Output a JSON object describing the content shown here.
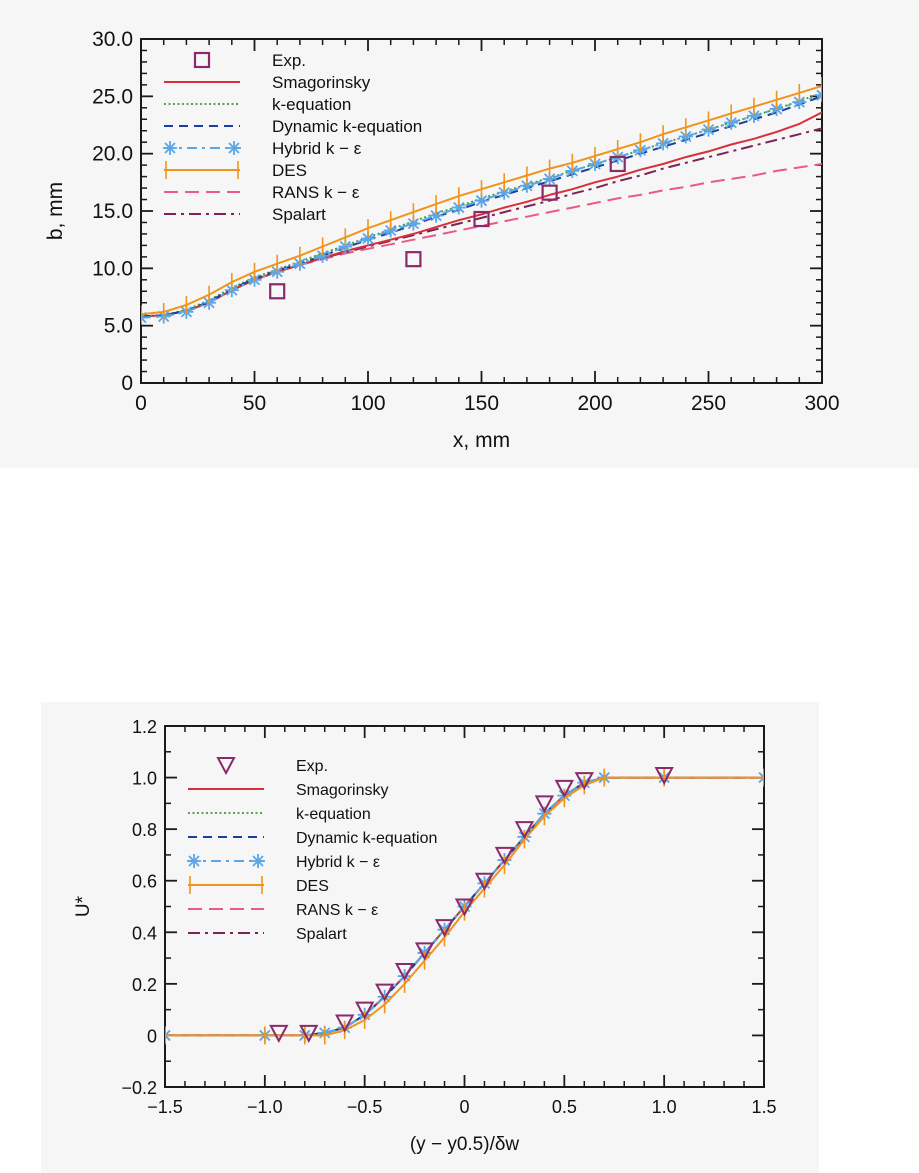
{
  "colors": {
    "exp": "#8b2a6a",
    "smagorinsky": "#d8303a",
    "k_equation": "#3f9a35",
    "dynamic": "#1b3f9e",
    "hybrid": "#5aa6e6",
    "des": "#f0941c",
    "rans": "#ea5a87",
    "spalart": "#7d2457"
  },
  "chart_data": [
    {
      "type": "line",
      "xlabel": "x, mm",
      "ylabel": "b, mm",
      "xlim": [
        0,
        300
      ],
      "ylim": [
        0,
        30
      ],
      "xticks": [
        0,
        50,
        100,
        150,
        200,
        250,
        300
      ],
      "xtick_labels": [
        "0",
        "50",
        "100",
        "150",
        "200",
        "250",
        "300"
      ],
      "yticks": [
        0,
        5,
        10,
        15,
        20,
        25,
        30
      ],
      "ytick_labels": [
        "0",
        "5.0",
        "10.0",
        "15.0",
        "20.0",
        "25.0",
        "30.0"
      ],
      "grid": false,
      "legend_position": "top-left",
      "legend": [
        "Exp.",
        "Smagorinsky",
        "k-equation",
        "Dynamic k-equation",
        "Hybrid k − ε",
        "DES",
        "RANS k − ε",
        "Spalart"
      ],
      "series": [
        {
          "name": "Exp.",
          "style": "markers",
          "marker": "square",
          "color_key": "exp",
          "x": [
            60,
            120,
            150,
            180,
            210
          ],
          "y": [
            8.0,
            10.8,
            14.3,
            16.6,
            19.1
          ]
        },
        {
          "name": "Smagorinsky",
          "style": "solid",
          "color_key": "smagorinsky",
          "x": [
            0,
            10,
            20,
            30,
            40,
            50,
            60,
            70,
            80,
            90,
            100,
            110,
            120,
            130,
            140,
            150,
            160,
            170,
            180,
            190,
            200,
            210,
            220,
            230,
            240,
            250,
            260,
            270,
            280,
            290,
            300
          ],
          "y": [
            5.8,
            5.9,
            6.3,
            7.0,
            8.1,
            9.0,
            9.7,
            10.3,
            10.9,
            11.5,
            12.0,
            12.5,
            13.0,
            13.6,
            14.2,
            14.7,
            15.3,
            15.8,
            16.4,
            16.9,
            17.5,
            18.0,
            18.6,
            19.1,
            19.7,
            20.2,
            20.8,
            21.3,
            21.9,
            22.6,
            23.6
          ]
        },
        {
          "name": "k-equation",
          "style": "dotted",
          "color_key": "k_equation",
          "x": [
            0,
            10,
            20,
            30,
            40,
            50,
            60,
            70,
            80,
            90,
            100,
            110,
            120,
            130,
            140,
            150,
            160,
            170,
            180,
            190,
            200,
            210,
            220,
            230,
            240,
            250,
            260,
            270,
            280,
            290,
            300
          ],
          "y": [
            5.8,
            5.9,
            6.4,
            7.2,
            8.3,
            9.2,
            9.9,
            10.6,
            11.3,
            12.0,
            12.7,
            13.4,
            14.1,
            14.8,
            15.4,
            16.1,
            16.7,
            17.3,
            17.9,
            18.5,
            19.1,
            19.7,
            20.3,
            20.9,
            21.5,
            22.1,
            22.7,
            23.3,
            23.9,
            24.6,
            25.3
          ]
        },
        {
          "name": "Dynamic k-equation",
          "style": "dashed",
          "color_key": "dynamic",
          "x": [
            0,
            10,
            20,
            30,
            40,
            50,
            60,
            70,
            80,
            90,
            100,
            110,
            120,
            130,
            140,
            150,
            160,
            170,
            180,
            190,
            200,
            210,
            220,
            230,
            240,
            250,
            260,
            270,
            280,
            290,
            300
          ],
          "y": [
            5.8,
            5.9,
            6.3,
            7.1,
            8.2,
            9.1,
            9.8,
            10.4,
            11.1,
            11.8,
            12.5,
            13.1,
            13.8,
            14.5,
            15.1,
            15.8,
            16.4,
            17.0,
            17.6,
            18.2,
            18.8,
            19.4,
            20.0,
            20.6,
            21.2,
            21.8,
            22.4,
            23.0,
            23.6,
            24.3,
            25.0
          ]
        },
        {
          "name": "Hybrid k − ε",
          "style": "dashdot-star",
          "color_key": "hybrid",
          "x": [
            0,
            10,
            20,
            30,
            40,
            50,
            60,
            70,
            80,
            90,
            100,
            110,
            120,
            130,
            140,
            150,
            160,
            170,
            180,
            190,
            200,
            210,
            220,
            230,
            240,
            250,
            260,
            270,
            280,
            290,
            300
          ],
          "y": [
            5.7,
            5.8,
            6.2,
            7.0,
            8.1,
            9.0,
            9.7,
            10.4,
            11.1,
            11.9,
            12.6,
            13.3,
            13.9,
            14.6,
            15.3,
            15.9,
            16.6,
            17.2,
            17.8,
            18.5,
            19.1,
            19.7,
            20.3,
            20.9,
            21.5,
            22.1,
            22.7,
            23.3,
            23.9,
            24.5,
            25.1
          ]
        },
        {
          "name": "DES",
          "style": "solid-tick",
          "color_key": "des",
          "x": [
            0,
            10,
            20,
            30,
            40,
            50,
            60,
            70,
            80,
            90,
            100,
            110,
            120,
            130,
            140,
            150,
            160,
            170,
            180,
            190,
            200,
            210,
            220,
            230,
            240,
            250,
            260,
            270,
            280,
            290,
            300
          ],
          "y": [
            6.0,
            6.2,
            6.8,
            7.7,
            8.8,
            9.7,
            10.4,
            11.1,
            11.9,
            12.7,
            13.5,
            14.2,
            14.9,
            15.6,
            16.3,
            16.9,
            17.5,
            18.1,
            18.7,
            19.2,
            19.8,
            20.4,
            21.0,
            21.7,
            22.3,
            22.9,
            23.5,
            24.1,
            24.7,
            25.3,
            25.9
          ]
        },
        {
          "name": "RANS k − ε",
          "style": "longdash",
          "color_key": "rans",
          "x": [
            0,
            10,
            20,
            30,
            40,
            50,
            60,
            70,
            80,
            90,
            100,
            110,
            120,
            130,
            140,
            150,
            160,
            170,
            180,
            190,
            200,
            210,
            220,
            230,
            240,
            250,
            260,
            270,
            280,
            290,
            300
          ],
          "y": [
            5.8,
            5.9,
            6.3,
            7.0,
            8.1,
            9.0,
            9.7,
            10.3,
            10.8,
            11.3,
            11.7,
            12.1,
            12.5,
            12.9,
            13.3,
            13.7,
            14.1,
            14.5,
            14.9,
            15.3,
            15.7,
            16.1,
            16.4,
            16.8,
            17.1,
            17.5,
            17.8,
            18.1,
            18.5,
            18.8,
            19.1
          ]
        },
        {
          "name": "Spalart",
          "style": "dashdot",
          "color_key": "spalart",
          "x": [
            0,
            10,
            20,
            30,
            40,
            50,
            60,
            70,
            80,
            90,
            100,
            110,
            120,
            130,
            140,
            150,
            160,
            170,
            180,
            190,
            200,
            210,
            220,
            230,
            240,
            250,
            260,
            270,
            280,
            290,
            300
          ],
          "y": [
            5.8,
            5.9,
            6.3,
            7.0,
            8.1,
            9.0,
            9.7,
            10.3,
            10.9,
            11.4,
            11.9,
            12.4,
            12.9,
            13.4,
            13.9,
            14.4,
            14.9,
            15.4,
            15.9,
            16.5,
            17.0,
            17.6,
            18.1,
            18.7,
            19.2,
            19.7,
            20.2,
            20.7,
            21.2,
            21.7,
            22.2
          ]
        }
      ]
    },
    {
      "type": "line",
      "xlabel": "(y − y0.5)/δw",
      "ylabel": "U*",
      "xlim": [
        -1.5,
        1.5
      ],
      "ylim": [
        -0.2,
        1.2
      ],
      "xticks": [
        -1.5,
        -1.0,
        -0.5,
        0,
        0.5,
        1.0,
        1.5
      ],
      "xtick_labels": [
        "−1.5",
        "−1.0",
        "−0.5",
        "0",
        "0.5",
        "1.0",
        "1.5"
      ],
      "yticks": [
        -0.2,
        0,
        0.2,
        0.4,
        0.6,
        0.8,
        1.0,
        1.2
      ],
      "ytick_labels": [
        "−0.2",
        "0",
        "0.2",
        "0.4",
        "0.6",
        "0.8",
        "1.0",
        "1.2"
      ],
      "grid": false,
      "legend_position": "top-left",
      "legend": [
        "Exp.",
        "Smagorinsky",
        "k-equation",
        "Dynamic k-equation",
        "Hybrid k − ε",
        "DES",
        "RANS k − ε",
        "Spalart"
      ],
      "series": [
        {
          "name": "Exp.",
          "style": "markers",
          "marker": "triangle-down",
          "color_key": "exp",
          "x": [
            -0.93,
            -0.78,
            -0.6,
            -0.5,
            -0.4,
            -0.3,
            -0.2,
            -0.1,
            0.0,
            0.1,
            0.2,
            0.3,
            0.4,
            0.5,
            0.6,
            1.0
          ],
          "y": [
            0.01,
            0.01,
            0.05,
            0.1,
            0.17,
            0.25,
            0.33,
            0.42,
            0.5,
            0.6,
            0.7,
            0.8,
            0.9,
            0.96,
            0.99,
            1.01
          ]
        },
        {
          "name": "Smagorinsky",
          "style": "solid",
          "color_key": "smagorinsky",
          "x": [
            -1.5,
            -1.0,
            -0.8,
            -0.7,
            -0.6,
            -0.5,
            -0.4,
            -0.3,
            -0.2,
            -0.1,
            0.0,
            0.1,
            0.2,
            0.3,
            0.4,
            0.5,
            0.6,
            0.7,
            1.0,
            1.5
          ],
          "y": [
            0.0,
            0.0,
            0.0,
            0.01,
            0.03,
            0.08,
            0.15,
            0.23,
            0.32,
            0.41,
            0.5,
            0.59,
            0.68,
            0.77,
            0.86,
            0.93,
            0.98,
            1.0,
            1.0,
            1.0
          ]
        },
        {
          "name": "k-equation",
          "style": "dotted",
          "color_key": "k_equation",
          "x": [
            -1.5,
            -1.0,
            -0.8,
            -0.7,
            -0.6,
            -0.5,
            -0.4,
            -0.3,
            -0.2,
            -0.1,
            0.0,
            0.1,
            0.2,
            0.3,
            0.4,
            0.5,
            0.6,
            0.7,
            1.0,
            1.5
          ],
          "y": [
            0.0,
            0.0,
            0.0,
            0.01,
            0.03,
            0.08,
            0.15,
            0.23,
            0.32,
            0.41,
            0.5,
            0.59,
            0.68,
            0.77,
            0.86,
            0.93,
            0.98,
            1.0,
            1.0,
            1.0
          ]
        },
        {
          "name": "Dynamic k-equation",
          "style": "dashed",
          "color_key": "dynamic",
          "x": [
            -1.5,
            -1.0,
            -0.8,
            -0.7,
            -0.6,
            -0.5,
            -0.4,
            -0.3,
            -0.2,
            -0.1,
            0.0,
            0.1,
            0.2,
            0.3,
            0.4,
            0.5,
            0.6,
            0.7,
            1.0,
            1.5
          ],
          "y": [
            0.0,
            0.0,
            0.0,
            0.01,
            0.03,
            0.08,
            0.15,
            0.23,
            0.32,
            0.41,
            0.5,
            0.59,
            0.68,
            0.77,
            0.86,
            0.93,
            0.98,
            1.0,
            1.0,
            1.0
          ]
        },
        {
          "name": "Hybrid k − ε",
          "style": "dashdot-star",
          "color_key": "hybrid",
          "x": [
            -1.5,
            -1.0,
            -0.8,
            -0.7,
            -0.6,
            -0.5,
            -0.4,
            -0.3,
            -0.2,
            -0.1,
            0.0,
            0.1,
            0.2,
            0.3,
            0.4,
            0.5,
            0.6,
            0.7,
            1.0,
            1.5
          ],
          "y": [
            0.0,
            0.0,
            0.0,
            0.01,
            0.03,
            0.08,
            0.15,
            0.23,
            0.32,
            0.41,
            0.5,
            0.59,
            0.68,
            0.77,
            0.86,
            0.93,
            0.98,
            1.0,
            1.0,
            1.0
          ]
        },
        {
          "name": "DES",
          "style": "solid-tick",
          "color_key": "des",
          "x": [
            -1.5,
            -1.0,
            -0.8,
            -0.7,
            -0.6,
            -0.5,
            -0.4,
            -0.3,
            -0.2,
            -0.1,
            0.0,
            0.1,
            0.2,
            0.3,
            0.4,
            0.5,
            0.6,
            0.7,
            1.0,
            1.5
          ],
          "y": [
            0.0,
            0.0,
            0.0,
            0.0,
            0.02,
            0.06,
            0.12,
            0.2,
            0.29,
            0.38,
            0.48,
            0.57,
            0.66,
            0.76,
            0.85,
            0.92,
            0.97,
            1.0,
            1.0,
            1.0
          ]
        },
        {
          "name": "RANS k − ε",
          "style": "longdash",
          "color_key": "rans",
          "x": [
            -1.5,
            -1.0,
            -0.8,
            -0.7,
            -0.6,
            -0.5,
            -0.4,
            -0.3,
            -0.2,
            -0.1,
            0.0,
            0.1,
            0.2,
            0.3,
            0.4,
            0.5,
            0.6,
            0.7,
            1.0,
            1.5
          ],
          "y": [
            0.0,
            0.0,
            0.0,
            0.01,
            0.03,
            0.08,
            0.15,
            0.23,
            0.32,
            0.41,
            0.5,
            0.59,
            0.68,
            0.77,
            0.86,
            0.93,
            0.98,
            1.0,
            1.0,
            1.0
          ]
        },
        {
          "name": "Spalart",
          "style": "dashdot",
          "color_key": "spalart",
          "x": [
            -1.5,
            -1.0,
            -0.8,
            -0.7,
            -0.6,
            -0.5,
            -0.4,
            -0.3,
            -0.2,
            -0.1,
            0.0,
            0.1,
            0.2,
            0.3,
            0.4,
            0.5,
            0.6,
            0.7,
            1.0,
            1.5
          ],
          "y": [
            0.0,
            0.0,
            0.0,
            0.01,
            0.03,
            0.08,
            0.15,
            0.23,
            0.32,
            0.41,
            0.5,
            0.59,
            0.68,
            0.77,
            0.86,
            0.93,
            0.98,
            1.0,
            1.0,
            1.0
          ]
        }
      ]
    }
  ]
}
